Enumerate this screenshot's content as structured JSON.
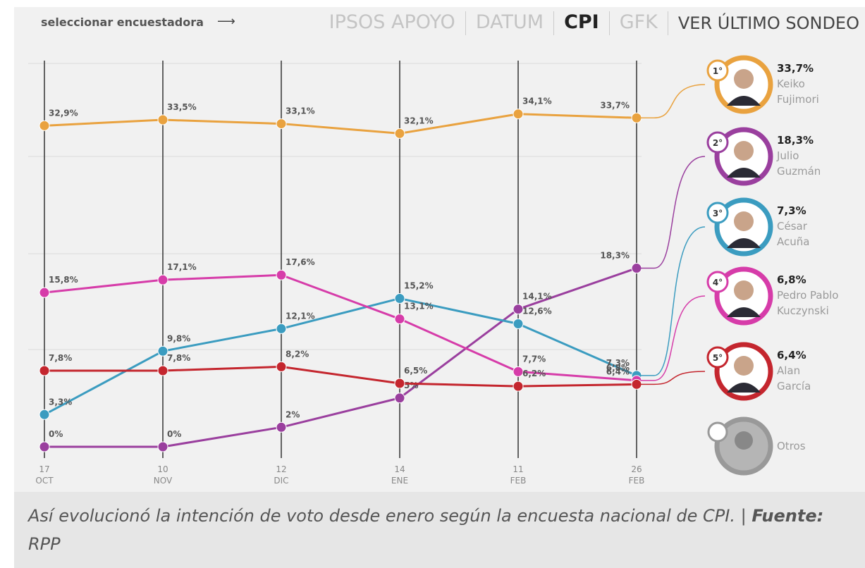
{
  "nav": {
    "prompt": "seleccionar encuestadora",
    "tabs": [
      "IPSOS APOYO",
      "DATUM",
      "CPI",
      "GFK"
    ],
    "selected_tab": 2,
    "latest": "VER ÚLTIMO SONDEO"
  },
  "chart_data": {
    "type": "line",
    "categories": [
      "17 OCT",
      "10 NOV",
      "12 DIC",
      "14 ENE",
      "11 FEB",
      "26 FEB"
    ],
    "series": [
      {
        "name": "Keiko Fujimori",
        "rank": "1°",
        "color": "#e9a23f",
        "values": [
          32.9,
          33.5,
          33.1,
          32.1,
          34.1,
          33.7
        ],
        "value_labels": [
          "32,9%",
          "33,5%",
          "33,1%",
          "32,1%",
          "34,1%",
          "33,7%"
        ]
      },
      {
        "name": "Julio Guzmán",
        "rank": "2°",
        "color": "#9a3f9e",
        "values": [
          0,
          0,
          2,
          5,
          14.1,
          18.3
        ],
        "value_labels": [
          "0%",
          "0%",
          "2%",
          "5%",
          "14,1%",
          "18,3%"
        ]
      },
      {
        "name": "César Acuña",
        "rank": "3°",
        "color": "#3b9cc0",
        "values": [
          3.3,
          9.8,
          12.1,
          15.2,
          12.6,
          7.3
        ],
        "value_labels": [
          "3,3%",
          "9,8%",
          "12,1%",
          "15,2%",
          "12,6%",
          "7,3%"
        ]
      },
      {
        "name": "Pedro Pablo Kuczynski",
        "rank": "4°",
        "color": "#d63ca9",
        "values": [
          15.8,
          17.1,
          17.6,
          13.1,
          7.7,
          6.8
        ],
        "value_labels": [
          "15,8%",
          "17,1%",
          "17,6%",
          "13,1%",
          "7,7%",
          "6,8%"
        ]
      },
      {
        "name": "Alan García",
        "rank": "5°",
        "color": "#c4262e",
        "values": [
          7.8,
          7.8,
          8.2,
          6.5,
          6.2,
          6.4
        ],
        "value_labels": [
          "7,8%",
          "7,8%",
          "8,2%",
          "6,5%",
          "6,2%",
          "6,4%"
        ]
      }
    ],
    "others": "Otros"
  },
  "caption": {
    "text": "Así evolucionó la intención de voto desde enero según la encuesta nacional de CPI. |",
    "source_label": "Fuente:",
    "source": "RPP"
  }
}
